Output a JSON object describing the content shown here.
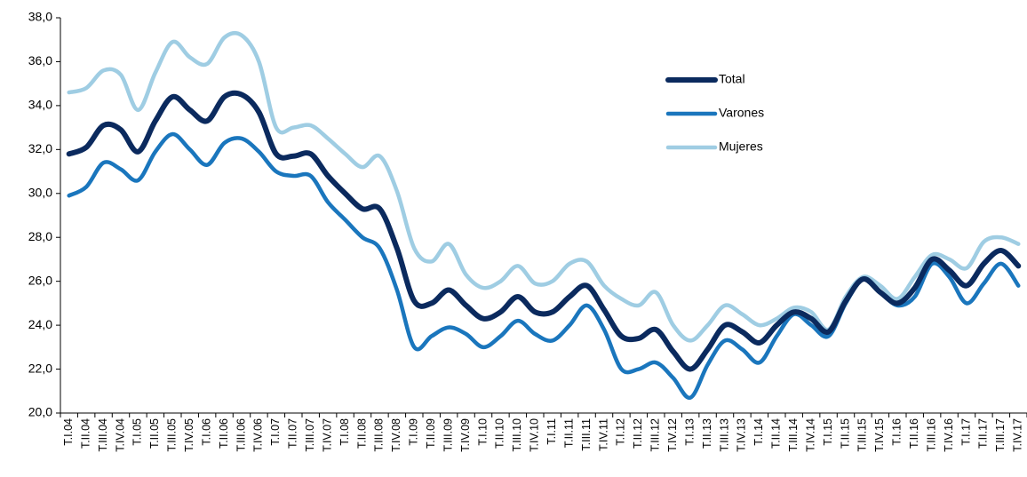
{
  "chart_data": {
    "type": "line",
    "categories": [
      "T.I.04",
      "T.II.04",
      "T.III.04",
      "T.IV.04",
      "T.I.05",
      "T.II.05",
      "T.III.05",
      "T.IV.05",
      "T.I.06",
      "T.II.06",
      "T.III.06",
      "T.IV.06",
      "T.I.07",
      "T.II.07",
      "T.III.07",
      "T.IV.07",
      "T.I.08",
      "T.II.08",
      "T.III.08",
      "T.IV.08",
      "T.I.09",
      "T.II.09",
      "T.III.09",
      "T.IV.09",
      "T.I.10",
      "T.II.10",
      "T.III.10",
      "T.IV.10",
      "T.I.11",
      "T.II.11",
      "T.III.11",
      "T.IV.11",
      "T.I.12",
      "T.II.12",
      "T.III.12",
      "T.IV.12",
      "T.I.13",
      "T.II.13",
      "T.III.13",
      "T.IV.13",
      "T.I.14",
      "T.II.14",
      "T.III.14",
      "T.IV.14",
      "T.I.15",
      "T.II.15",
      "T.III.15",
      "T.IV.15",
      "T.I.16",
      "T.II.16",
      "T.III.16",
      "T.IV.16",
      "T.I.17",
      "T.II.17",
      "T.III.17",
      "T.IV.17"
    ],
    "series": [
      {
        "name": "Total",
        "color": "#0b2a5e",
        "values": [
          31.8,
          32.1,
          33.1,
          32.9,
          31.9,
          33.3,
          34.4,
          33.8,
          33.3,
          34.4,
          34.5,
          33.7,
          31.8,
          31.7,
          31.8,
          30.8,
          30.0,
          29.3,
          29.3,
          27.5,
          25.1,
          25.0,
          25.6,
          24.9,
          24.3,
          24.6,
          25.3,
          24.6,
          24.6,
          25.3,
          25.8,
          24.7,
          23.5,
          23.4,
          23.8,
          22.8,
          22.0,
          22.9,
          24.0,
          23.7,
          23.2,
          24.0,
          24.6,
          24.3,
          23.7,
          25.1,
          26.1,
          25.5,
          25.0,
          25.7,
          27.0,
          26.5,
          25.8,
          26.8,
          27.4,
          26.7
        ]
      },
      {
        "name": "Varones",
        "color": "#1a76bd",
        "values": [
          29.9,
          30.3,
          31.4,
          31.1,
          30.6,
          31.9,
          32.7,
          32.0,
          31.3,
          32.3,
          32.5,
          31.9,
          31.0,
          30.8,
          30.8,
          29.6,
          28.8,
          28.0,
          27.5,
          25.6,
          23.0,
          23.5,
          23.9,
          23.6,
          23.0,
          23.5,
          24.2,
          23.6,
          23.3,
          24.0,
          24.9,
          23.8,
          22.0,
          22.0,
          22.3,
          21.6,
          20.7,
          22.2,
          23.3,
          22.9,
          22.3,
          23.5,
          24.5,
          24.0,
          23.5,
          25.0,
          26.1,
          25.5,
          24.9,
          25.3,
          26.8,
          26.2,
          25.0,
          25.9,
          26.8,
          25.8
        ]
      },
      {
        "name": "Mujeres",
        "color": "#9fcde3",
        "values": [
          34.6,
          34.8,
          35.6,
          35.4,
          33.8,
          35.5,
          36.9,
          36.2,
          35.9,
          37.1,
          37.2,
          36.0,
          33.0,
          33.0,
          33.1,
          32.5,
          31.8,
          31.2,
          31.7,
          30.1,
          27.5,
          26.9,
          27.7,
          26.3,
          25.7,
          26.0,
          26.7,
          25.9,
          26.0,
          26.8,
          26.9,
          25.8,
          25.2,
          24.9,
          25.5,
          24.0,
          23.3,
          24.0,
          24.9,
          24.5,
          24.0,
          24.3,
          24.8,
          24.6,
          23.8,
          25.3,
          26.2,
          25.8,
          25.2,
          26.2,
          27.2,
          27.0,
          26.6,
          27.8,
          28.0,
          27.7
        ]
      }
    ],
    "ylim": [
      20,
      38
    ],
    "yticks": [
      {
        "value": 20,
        "label": "20,0"
      },
      {
        "value": 22,
        "label": "22,0"
      },
      {
        "value": 24,
        "label": "24,0"
      },
      {
        "value": 26,
        "label": "26,0"
      },
      {
        "value": 28,
        "label": "28,0"
      },
      {
        "value": 30,
        "label": "30,0"
      },
      {
        "value": 32,
        "label": "32,0"
      },
      {
        "value": 34,
        "label": "34,0"
      },
      {
        "value": 36,
        "label": "36,0"
      },
      {
        "value": 38,
        "label": "38,0"
      }
    ],
    "grid": false
  }
}
